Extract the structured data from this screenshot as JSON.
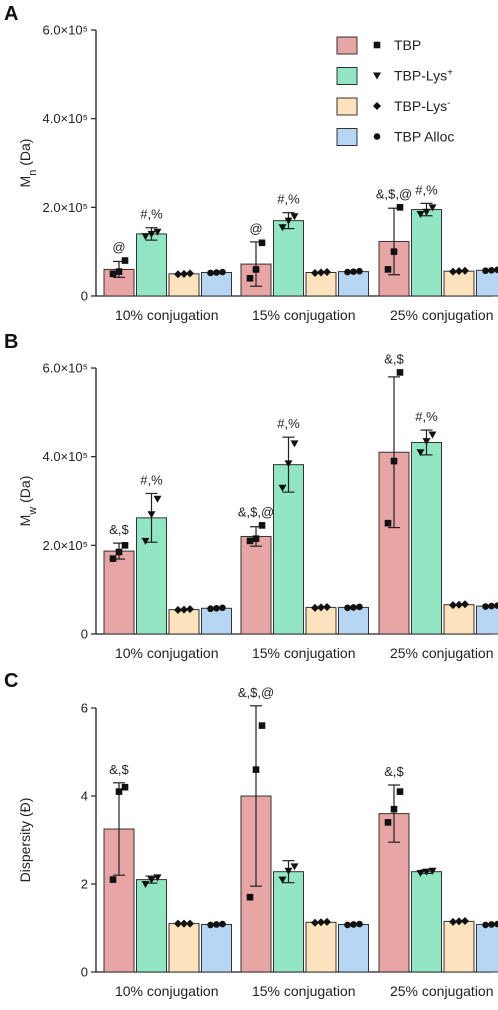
{
  "colors": {
    "TBP": "#e8a5a5",
    "TBP-Lys+": "#93e6c4",
    "TBP-Lys-": "#fde3bd",
    "TBP Alloc": "#b7d6f4",
    "outline": "#222222"
  },
  "legend": {
    "items": [
      {
        "key": "TBP",
        "label": "TBP",
        "sup": "",
        "marker": "square"
      },
      {
        "key": "TBP-Lys+",
        "label": "TBP-Lys",
        "sup": "+",
        "marker": "triangle-down"
      },
      {
        "key": "TBP-Lys-",
        "label": "TBP-Lys",
        "sup": "-",
        "marker": "diamond"
      },
      {
        "key": "TBP Alloc",
        "label": "TBP Alloc",
        "sup": "",
        "marker": "circle"
      }
    ]
  },
  "chart_data": [
    {
      "panel": "A",
      "type": "bar",
      "ylabel_main": "M",
      "ylabel_sub": "n",
      "ylabel_rest": " (Da)",
      "ylim": [
        0,
        600000
      ],
      "yticks": [
        0,
        200000,
        400000,
        600000
      ],
      "ytick_labels": [
        "0",
        "2.0×10⁵",
        "4.0×10⁵",
        "6.0×10⁵"
      ],
      "categories": [
        "10% conjugation",
        "15% conjugation",
        "25% conjugation"
      ],
      "series": [
        {
          "name": "TBP",
          "values": [
            60000,
            72000,
            123000
          ],
          "errors": [
            18000,
            50000,
            75000
          ],
          "points": [
            [
              50000,
              55000,
              80000
            ],
            [
              40000,
              60000,
              120000
            ],
            [
              60000,
              100000,
              200000
            ]
          ],
          "annotations": [
            "@",
            "@",
            "&,$,@"
          ]
        },
        {
          "name": "TBP-Lys+",
          "values": [
            140000,
            170000,
            195000
          ],
          "errors": [
            14000,
            18000,
            14000
          ],
          "points": [
            [
              135000,
              140000,
              145000
            ],
            [
              155000,
              170000,
              180000
            ],
            [
              185000,
              190000,
              200000
            ]
          ],
          "annotations": [
            "#,%",
            "#,%",
            "#,%"
          ]
        },
        {
          "name": "TBP-Lys-",
          "values": [
            50000,
            53000,
            56000
          ],
          "errors": [
            0,
            0,
            0
          ],
          "points": [
            [
              49000,
              50000,
              51000
            ],
            [
              52000,
              53000,
              54000
            ],
            [
              55000,
              56000,
              57000
            ]
          ],
          "annotations": [
            "",
            "",
            ""
          ]
        },
        {
          "name": "TBP Alloc",
          "values": [
            53000,
            55000,
            58000
          ],
          "errors": [
            0,
            0,
            0
          ],
          "points": [
            [
              52000,
              53000,
              54000
            ],
            [
              54000,
              55000,
              56000
            ],
            [
              57000,
              58000,
              59000
            ]
          ],
          "annotations": [
            "",
            "",
            ""
          ]
        }
      ]
    },
    {
      "panel": "B",
      "type": "bar",
      "ylabel_main": "M",
      "ylabel_sub": "w",
      "ylabel_rest": " (Da)",
      "ylim": [
        0,
        600000
      ],
      "yticks": [
        0,
        200000,
        400000,
        600000
      ],
      "ytick_labels": [
        "0",
        "2.0×10⁵",
        "4.0×10⁵",
        "6.0×10⁵"
      ],
      "categories": [
        "10% conjugation",
        "15% conjugation",
        "25% conjugation"
      ],
      "series": [
        {
          "name": "TBP",
          "values": [
            187000,
            220000,
            410000
          ],
          "errors": [
            18000,
            22000,
            170000
          ],
          "points": [
            [
              170000,
              185000,
              200000
            ],
            [
              210000,
              215000,
              245000
            ],
            [
              250000,
              390000,
              590000
            ]
          ],
          "annotations": [
            "&,$",
            "&,$,@",
            "&,$"
          ]
        },
        {
          "name": "TBP-Lys+",
          "values": [
            262000,
            382000,
            432000
          ],
          "errors": [
            55000,
            62000,
            28000
          ],
          "points": [
            [
              210000,
              270000,
              305000
            ],
            [
              330000,
              385000,
              430000
            ],
            [
              410000,
              435000,
              450000
            ]
          ],
          "annotations": [
            "#,%",
            "#,%",
            "#,%"
          ]
        },
        {
          "name": "TBP-Lys-",
          "values": [
            55000,
            60000,
            66000
          ],
          "errors": [
            0,
            0,
            0
          ],
          "points": [
            [
              54000,
              55000,
              56000
            ],
            [
              59000,
              60000,
              61000
            ],
            [
              65000,
              66000,
              67000
            ]
          ],
          "annotations": [
            "",
            "",
            ""
          ]
        },
        {
          "name": "TBP Alloc",
          "values": [
            58000,
            60000,
            63000
          ],
          "errors": [
            0,
            0,
            0
          ],
          "points": [
            [
              57000,
              58000,
              59000
            ],
            [
              59000,
              60000,
              61000
            ],
            [
              62000,
              63000,
              64000
            ]
          ],
          "annotations": [
            "",
            "",
            ""
          ]
        }
      ]
    },
    {
      "panel": "C",
      "type": "bar",
      "ylabel_main": "Dispersity (Đ)",
      "ylabel_sub": "",
      "ylabel_rest": "",
      "ylim": [
        0,
        6
      ],
      "yticks": [
        0,
        2,
        4,
        6
      ],
      "ytick_labels": [
        "0",
        "2",
        "4",
        "6"
      ],
      "categories": [
        "10% conjugation",
        "15% conjugation",
        "25% conjugation"
      ],
      "series": [
        {
          "name": "TBP",
          "values": [
            3.25,
            4.0,
            3.6
          ],
          "errors": [
            1.05,
            2.05,
            0.65
          ],
          "points": [
            [
              2.1,
              4.1,
              4.2
            ],
            [
              1.7,
              4.6,
              5.6
            ],
            [
              3.4,
              3.7,
              4.1
            ]
          ],
          "annotations": [
            "&,$",
            "&,$,@",
            "&,$"
          ]
        },
        {
          "name": "TBP-Lys+",
          "values": [
            2.1,
            2.28,
            2.28
          ],
          "errors": [
            0.08,
            0.25,
            0.04
          ],
          "points": [
            [
              2.0,
              2.1,
              2.15
            ],
            [
              2.1,
              2.3,
              2.4
            ],
            [
              2.25,
              2.28,
              2.3
            ]
          ],
          "annotations": [
            "",
            "",
            ""
          ]
        },
        {
          "name": "TBP-Lys-",
          "values": [
            1.1,
            1.13,
            1.15
          ],
          "errors": [
            0,
            0,
            0
          ],
          "points": [
            [
              1.1,
              1.1,
              1.1
            ],
            [
              1.12,
              1.13,
              1.14
            ],
            [
              1.14,
              1.15,
              1.16
            ]
          ],
          "annotations": [
            "",
            "",
            ""
          ]
        },
        {
          "name": "TBP Alloc",
          "values": [
            1.08,
            1.08,
            1.08
          ],
          "errors": [
            0,
            0,
            0
          ],
          "points": [
            [
              1.07,
              1.08,
              1.09
            ],
            [
              1.07,
              1.08,
              1.09
            ],
            [
              1.07,
              1.08,
              1.09
            ]
          ],
          "annotations": [
            "",
            "",
            ""
          ]
        }
      ]
    }
  ]
}
